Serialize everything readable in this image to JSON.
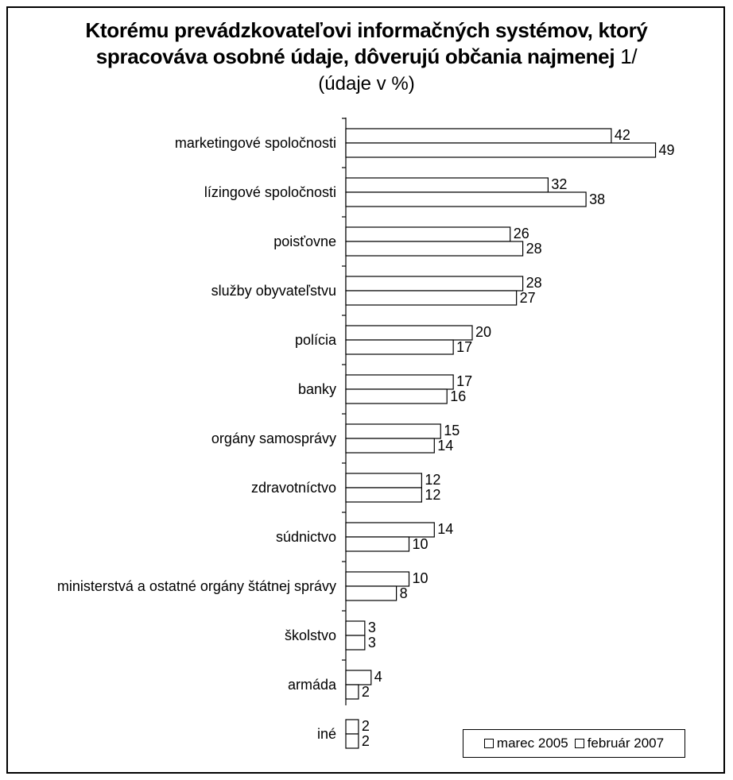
{
  "chart_data": {
    "type": "bar",
    "orientation": "horizontal",
    "title_line1": "Ktorému prevádzkovateľovi informačných systémov, ktorý",
    "title_line2": "spracováva osobné údaje, dôverujú občania najmenej",
    "title_suffix": " 1/",
    "subtitle": "(údaje v %)",
    "categories": [
      "marketingové spoločnosti",
      "lízingové spoločnosti",
      "poisťovne",
      "služby obyvateľstvu",
      "polícia",
      "banky",
      "orgány samosprávy",
      "zdravotníctvo",
      "súdnictvo",
      "ministerstvá a ostatné orgány štátnej správy",
      "školstvo",
      "armáda",
      "iné"
    ],
    "series": [
      {
        "name": "marec 2005",
        "values": [
          42,
          32,
          26,
          28,
          20,
          17,
          15,
          12,
          14,
          10,
          3,
          4,
          2
        ]
      },
      {
        "name": "február 2007",
        "values": [
          49,
          38,
          28,
          27,
          17,
          16,
          14,
          12,
          10,
          8,
          3,
          2,
          2
        ]
      }
    ],
    "legend_position": "bottom-right",
    "grid": false,
    "colors": {
      "bar_fill": "#ffffff",
      "bar_stroke": "#000000"
    }
  }
}
